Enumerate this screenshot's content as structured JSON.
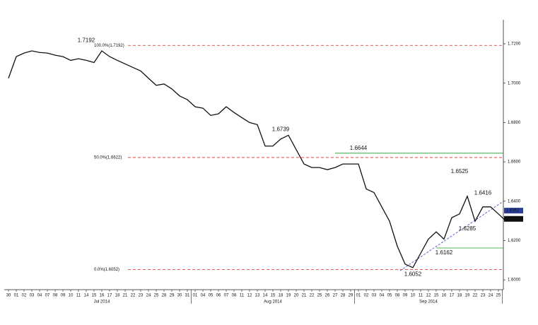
{
  "chart_data": {
    "type": "line",
    "color": "#111111",
    "groups": [
      {
        "label": null,
        "days": [
          "30"
        ]
      },
      {
        "label": "Jul 2014",
        "days": [
          "01",
          "02",
          "03",
          "04",
          "07",
          "08",
          "09",
          "10",
          "11",
          "14",
          "15",
          "16",
          "17",
          "18",
          "21",
          "22",
          "23",
          "24",
          "25",
          "28",
          "29",
          "30",
          "31"
        ]
      },
      {
        "label": "Aug 2014",
        "days": [
          "01",
          "04",
          "05",
          "06",
          "07",
          "08",
          "11",
          "12",
          "13",
          "14",
          "15",
          "18",
          "19",
          "20",
          "21",
          "22",
          "25",
          "26",
          "27",
          "28",
          "29"
        ]
      },
      {
        "label": "Sep 2014",
        "days": [
          "01",
          "02",
          "03",
          "04",
          "05",
          "08",
          "09",
          "10",
          "11",
          "12",
          "15",
          "16",
          "17",
          "18",
          "19",
          "22",
          "23",
          "24",
          "25"
        ]
      }
    ],
    "values": [
      1.7025,
      1.7135,
      1.7153,
      1.7164,
      1.7156,
      1.7153,
      1.7142,
      1.7135,
      1.7116,
      1.7124,
      1.7116,
      1.7105,
      1.7164,
      1.7135,
      1.7116,
      1.7098,
      1.708,
      1.7062,
      1.7025,
      1.6989,
      1.6996,
      1.6971,
      1.6935,
      1.6916,
      1.688,
      1.6873,
      1.6836,
      1.6844,
      1.688,
      1.6851,
      1.6825,
      1.68,
      1.6789,
      1.668,
      1.668,
      1.6716,
      1.6735,
      1.6662,
      1.6589,
      1.6571,
      1.6571,
      1.656,
      1.6571,
      1.6589,
      1.6589,
      1.6589,
      1.6462,
      1.6444,
      1.6371,
      1.6298,
      1.6171,
      1.608,
      1.6062,
      1.6135,
      1.6207,
      1.6244,
      1.6207,
      1.6316,
      1.6335,
      1.6425,
      1.6298,
      1.6371,
      1.6371,
      1.6335,
      1.6298
    ],
    "ylim": [
      1.595,
      1.7315
    ],
    "yticks": [
      {
        "value": 1.6,
        "label": "1.6000"
      },
      {
        "value": 1.62,
        "label": "1.6200"
      },
      {
        "value": 1.64,
        "label": "1.6400"
      },
      {
        "value": 1.66,
        "label": "1.6600"
      },
      {
        "value": 1.68,
        "label": "1.6800"
      },
      {
        "value": 1.7,
        "label": "1.7000"
      },
      {
        "value": 1.72,
        "label": "1.7200"
      }
    ],
    "grid": false,
    "levels": [
      {
        "value": 1.7192,
        "label": "100.0%(1.7192)",
        "color": "#e02020",
        "style": "dashed",
        "start": 11
      },
      {
        "value": 1.6622,
        "label": "50.0%(1.6622)",
        "color": "#e02020",
        "style": "dashed",
        "start": 11
      },
      {
        "value": 1.6052,
        "label": "0.0%(1.6052)",
        "color": "#e02020",
        "style": "dashed",
        "start": 11
      },
      {
        "value": 1.6644,
        "color": "#1a9a2a",
        "style": "solid",
        "start": 42
      },
      {
        "value": 1.6162,
        "color": "#1a9a2a",
        "style": "solid",
        "start": 55
      }
    ],
    "annotations": [
      {
        "value": 1.7192,
        "i": 10,
        "position": "above"
      },
      {
        "value": 1.6739,
        "i": 35,
        "position": "above"
      },
      {
        "value": 1.6644,
        "i": 45,
        "position": "above"
      },
      {
        "value": 1.6525,
        "i": 58,
        "position": "above"
      },
      {
        "value": 1.6416,
        "i": 61,
        "position": "above"
      },
      {
        "value": 1.6285,
        "i": 59,
        "position": "below"
      },
      {
        "value": 1.6162,
        "i": 56,
        "position": "below"
      },
      {
        "value": 1.6052,
        "i": 52,
        "position": "below"
      }
    ],
    "price_tags": [
      {
        "value": 1.6352,
        "color": "#2c3f9a"
      },
      {
        "value": 1.631,
        "color": "#111111"
      }
    ]
  }
}
